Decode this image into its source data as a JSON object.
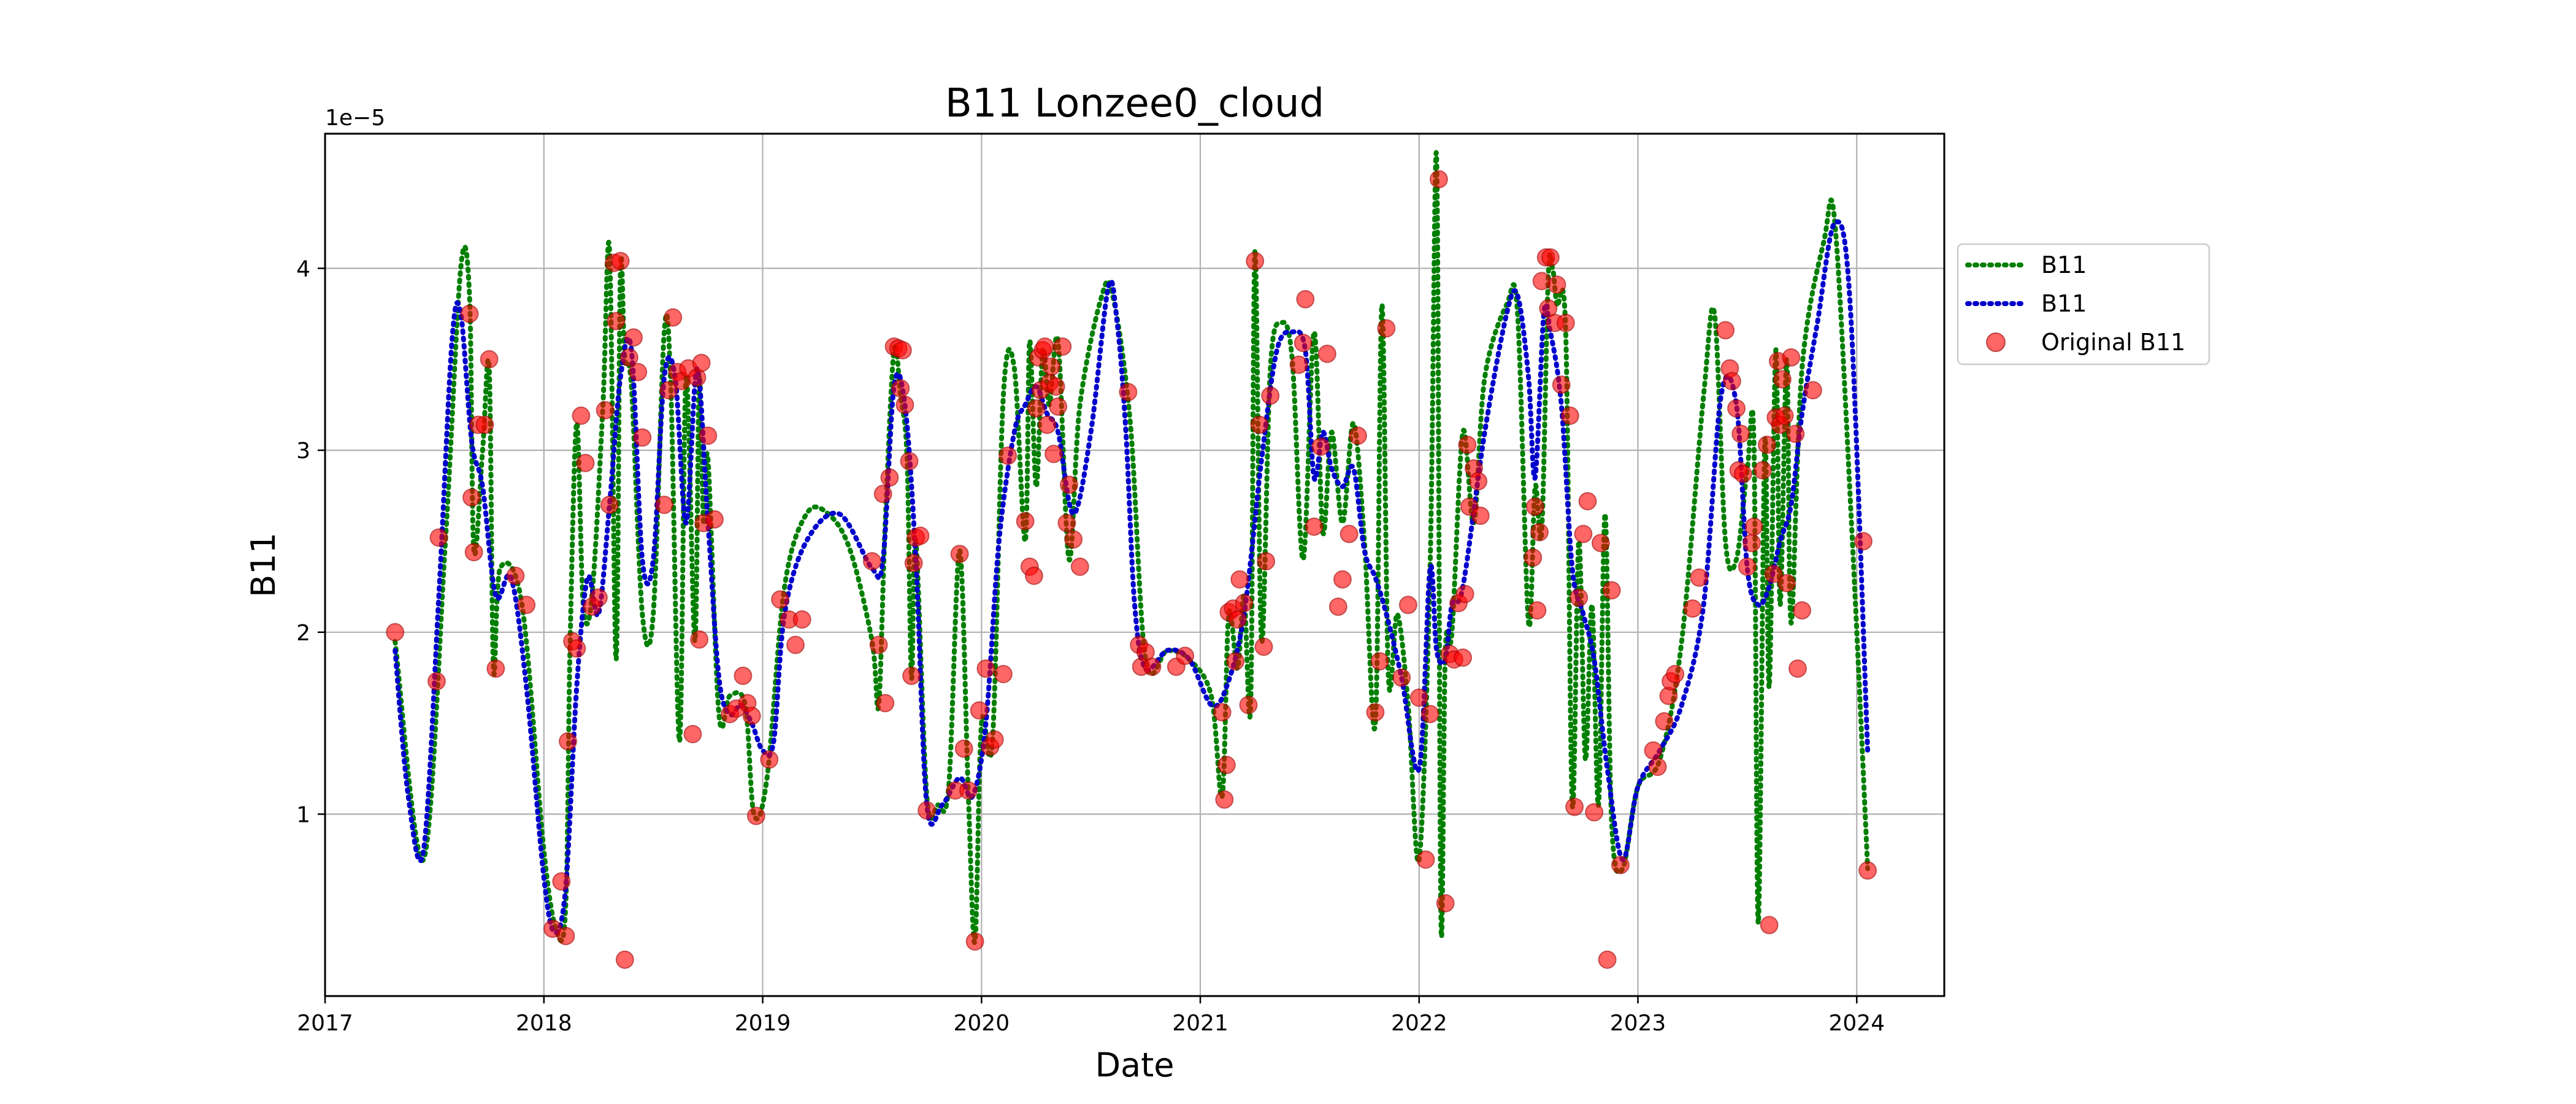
{
  "chart_data": {
    "type": "line",
    "title": "B11 Lonzee0_cloud",
    "xlabel": "Date",
    "ylabel": "B11",
    "offset_label": "1e−5",
    "xlim": [
      2017.0,
      2024.4
    ],
    "ylim": [
      0.0,
      4.74e-05
    ],
    "x_ticks": [
      2017,
      2018,
      2019,
      2020,
      2021,
      2022,
      2023,
      2024
    ],
    "x_tick_labels": [
      "2017",
      "2018",
      "2019",
      "2020",
      "2021",
      "2022",
      "2023",
      "2024"
    ],
    "y_ticks": [
      1e-05,
      2e-05,
      3e-05,
      4e-05
    ],
    "y_tick_labels": [
      "1",
      "2",
      "3",
      "4"
    ],
    "grid": true,
    "legend_position": "right",
    "colors": {
      "green": "#007f00",
      "blue": "#0000cc",
      "points": "#ff0000"
    },
    "legend": [
      {
        "label": "B11",
        "style": "green-dotted"
      },
      {
        "label": "B11",
        "style": "blue-dotted"
      },
      {
        "label": "Original B11",
        "style": "red-marker"
      }
    ],
    "series": [
      {
        "style": "green-dotted",
        "x": [
          2017.32,
          2017.45,
          2017.55,
          2017.62,
          2017.66,
          2017.68,
          2017.72,
          2017.75,
          2017.77,
          2017.8,
          2017.9,
          2018.0,
          2018.06,
          2018.1,
          2018.12,
          2018.15,
          2018.18,
          2018.22,
          2018.27,
          2018.3,
          2018.33,
          2018.35,
          2018.37,
          2018.4,
          2018.45,
          2018.5,
          2018.55,
          2018.58,
          2018.62,
          2018.65,
          2018.69,
          2018.71,
          2018.73,
          2018.75,
          2018.8,
          2018.85,
          2018.92,
          2018.96,
          2019.02,
          2019.1,
          2019.2,
          2019.3,
          2019.4,
          2019.5,
          2019.53,
          2019.56,
          2019.6,
          2019.63,
          2019.66,
          2019.68,
          2019.7,
          2019.75,
          2019.8,
          2019.85,
          2019.9,
          2019.94,
          2019.97,
          2020.0,
          2020.05,
          2020.1,
          2020.15,
          2020.2,
          2020.22,
          2020.25,
          2020.28,
          2020.31,
          2020.35,
          2020.4,
          2020.45,
          2020.55,
          2020.6,
          2020.68,
          2020.75,
          2020.85,
          2020.95,
          2021.05,
          2021.1,
          2021.13,
          2021.17,
          2021.2,
          2021.23,
          2021.25,
          2021.28,
          2021.32,
          2021.37,
          2021.42,
          2021.47,
          2021.52,
          2021.56,
          2021.6,
          2021.65,
          2021.7,
          2021.75,
          2021.8,
          2021.83,
          2021.86,
          2021.9,
          2021.95,
          2022.0,
          2022.05,
          2022.08,
          2022.1,
          2022.12,
          2022.15,
          2022.2,
          2022.25,
          2022.3,
          2022.4,
          2022.45,
          2022.5,
          2022.53,
          2022.56,
          2022.59,
          2022.61,
          2022.63,
          2022.67,
          2022.7,
          2022.73,
          2022.76,
          2022.79,
          2022.82,
          2022.85,
          2022.88,
          2022.93,
          2023.0,
          2023.1,
          2023.2,
          2023.3,
          2023.35,
          2023.4,
          2023.45,
          2023.5,
          2023.53,
          2023.55,
          2023.58,
          2023.6,
          2023.63,
          2023.65,
          2023.68,
          2023.7,
          2023.75,
          2023.85,
          2023.9,
          2023.98,
          2024.05
        ],
        "y": [
          1.95e-05,
          7.5e-06,
          2.5e-05,
          4e-05,
          3.85e-05,
          2.45e-05,
          3e-05,
          3.45e-05,
          1.8e-05,
          2.35e-05,
          2.15e-05,
          8e-06,
          3.5e-06,
          5e-06,
          1.95e-05,
          3.15e-05,
          2.15e-05,
          2.2e-05,
          3.25e-05,
          4.1e-05,
          1.85e-05,
          4e-05,
          3.5e-05,
          3.35e-05,
          2.1e-05,
          2.1e-05,
          3.65e-05,
          3.35e-05,
          1.4e-05,
          3.4e-05,
          1.95e-05,
          3.4e-05,
          2.6e-05,
          2.95e-05,
          1.55e-05,
          1.65e-05,
          1.6e-05,
          1e-05,
          1.2e-05,
          2.25e-05,
          2.65e-05,
          2.65e-05,
          2.45e-05,
          1.95e-05,
          1.6e-05,
          2.6e-05,
          3.55e-05,
          3.3e-05,
          2.95e-05,
          1.75e-05,
          2.5e-05,
          1.1e-05,
          1.05e-05,
          1.15e-05,
          2.45e-05,
          1.1e-05,
          3e-06,
          1.5e-05,
          1.4e-05,
          3.3e-05,
          3.45e-05,
          2.5e-05,
          3.6e-05,
          2.8e-05,
          3.55e-05,
          3.25e-05,
          3.6e-05,
          2.4e-05,
          3.25e-05,
          3.85e-05,
          3.85e-05,
          3.15e-05,
          1.85e-05,
          1.9e-05,
          1.85e-05,
          1.65e-05,
          1.1e-05,
          2.1e-05,
          1.8e-05,
          2.2e-05,
          1.6e-05,
          4.1e-05,
          1.95e-05,
          3.45e-05,
          3.7e-05,
          3.5e-05,
          2.4e-05,
          3.65e-05,
          2.55e-05,
          3.1e-05,
          2.6e-05,
          3.15e-05,
          2.5e-05,
          1.5e-05,
          3.8e-05,
          1.75e-05,
          2.1e-05,
          1.6e-05,
          7.5e-06,
          2.35e-05,
          4.6e-05,
          4e-06,
          1.9e-05,
          2e-05,
          3.1e-05,
          2.6e-05,
          3.4e-05,
          3.8e-05,
          3.75e-05,
          2.05e-05,
          2.8e-05,
          2.55e-05,
          3.95e-05,
          4e-05,
          3.8e-05,
          3.65e-05,
          1.05e-05,
          2.5e-05,
          1.3e-05,
          2.15e-05,
          1.05e-05,
          2.65e-05,
          9.5e-06,
          7e-06,
          1.15e-05,
          1.3e-05,
          1.95e-05,
          3.3e-05,
          3.75e-05,
          2.5e-05,
          2.4e-05,
          2.9e-05,
          3.05e-05,
          4e-06,
          3.05e-05,
          1.7e-05,
          3.55e-05,
          2.15e-05,
          3.5e-05,
          2.05e-05,
          3.45e-05,
          4.15e-05,
          4.25e-05,
          2.5e-05,
          7e-06
        ]
      },
      {
        "style": "blue-dotted",
        "x": [
          2017.32,
          2017.38,
          2017.45,
          2017.52,
          2017.58,
          2017.62,
          2017.67,
          2017.72,
          2017.78,
          2017.85,
          2017.92,
          2018.0,
          2018.05,
          2018.1,
          2018.15,
          2018.2,
          2018.25,
          2018.3,
          2018.35,
          2018.4,
          2018.45,
          2018.5,
          2018.55,
          2018.6,
          2018.65,
          2018.7,
          2018.75,
          2018.8,
          2018.85,
          2018.9,
          2018.95,
          2019.0,
          2019.05,
          2019.1,
          2019.2,
          2019.35,
          2019.5,
          2019.55,
          2019.6,
          2019.65,
          2019.7,
          2019.75,
          2019.82,
          2019.9,
          2019.96,
          2020.02,
          2020.08,
          2020.15,
          2020.2,
          2020.25,
          2020.3,
          2020.35,
          2020.42,
          2020.5,
          2020.58,
          2020.62,
          2020.66,
          2020.7,
          2020.75,
          2020.85,
          2020.95,
          2021.05,
          2021.12,
          2021.2,
          2021.28,
          2021.35,
          2021.42,
          2021.48,
          2021.52,
          2021.56,
          2021.6,
          2021.65,
          2021.7,
          2021.75,
          2021.8,
          2021.85,
          2021.92,
          2022.0,
          2022.05,
          2022.08,
          2022.12,
          2022.15,
          2022.2,
          2022.3,
          2022.4,
          2022.45,
          2022.5,
          2022.53,
          2022.57,
          2022.6,
          2022.65,
          2022.7,
          2022.75,
          2022.8,
          2022.86,
          2022.93,
          2023.0,
          2023.1,
          2023.2,
          2023.3,
          2023.38,
          2023.45,
          2023.5,
          2023.55,
          2023.6,
          2023.65,
          2023.7,
          2023.75,
          2023.82,
          2023.9,
          2023.97,
          2024.05
        ],
        "y": [
          1.9e-05,
          1.1e-05,
          8e-06,
          2.2e-05,
          3.6e-05,
          3.75e-05,
          3.05e-05,
          2.8e-05,
          2.2e-05,
          2.3e-05,
          1.7e-05,
          6.5e-06,
          3.5e-06,
          6e-06,
          1.7e-05,
          2.3e-05,
          2.1e-05,
          2.7e-05,
          3.4e-05,
          3.55e-05,
          2.4e-05,
          2.4e-05,
          3.4e-05,
          3.4e-05,
          2.6e-05,
          3.45e-05,
          2.6e-05,
          1.75e-05,
          1.55e-05,
          1.6e-05,
          1.5e-05,
          1.35e-05,
          1.4e-05,
          2.1e-05,
          2.5e-05,
          2.65e-05,
          2.35e-05,
          2.4e-05,
          3.35e-05,
          3.25e-05,
          2.4e-05,
          1.05e-05,
          1.05e-05,
          1.2e-05,
          1.1e-05,
          1.5e-05,
          2.5e-05,
          3.1e-05,
          3.25e-05,
          3.35e-05,
          3.2e-05,
          3.1e-05,
          2.65e-05,
          3.1e-05,
          3.9e-05,
          3.7e-05,
          3.1e-05,
          2.15e-05,
          1.8e-05,
          1.9e-05,
          1.85e-05,
          1.6e-05,
          1.7e-05,
          2.1e-05,
          2.95e-05,
          3.55e-05,
          3.65e-05,
          3.55e-05,
          2.85e-05,
          3.1e-05,
          2.9e-05,
          2.8e-05,
          2.9e-05,
          2.45e-05,
          2.3e-05,
          2.1e-05,
          1.75e-05,
          1.25e-05,
          2.35e-05,
          1.9e-05,
          1.85e-05,
          2.15e-05,
          2.25e-05,
          3.1e-05,
          3.75e-05,
          3.85e-05,
          3.4e-05,
          2.85e-05,
          3.75e-05,
          3.65e-05,
          3.25e-05,
          2.35e-05,
          2.1e-05,
          1.85e-05,
          1.25e-05,
          7.5e-06,
          1.15e-05,
          1.35e-05,
          1.6e-05,
          2.15e-05,
          3.3e-05,
          3.25e-05,
          2.35e-05,
          2.15e-05,
          2.25e-05,
          2.5e-05,
          2.7e-05,
          3.2e-05,
          3.7e-05,
          4.25e-05,
          3.8e-05,
          1.35e-05
        ]
      },
      {
        "style": "red-marker",
        "x": [
          2017.32,
          2017.51,
          2017.52,
          2017.66,
          2017.67,
          2017.68,
          2017.7,
          2017.73,
          2017.75,
          2017.78,
          2017.87,
          2017.92,
          2018.04,
          2018.08,
          2018.1,
          2018.11,
          2018.13,
          2018.15,
          2018.17,
          2018.19,
          2018.22,
          2018.25,
          2018.28,
          2018.3,
          2018.32,
          2018.33,
          2018.35,
          2018.37,
          2018.39,
          2018.41,
          2018.43,
          2018.45,
          2018.55,
          2018.57,
          2018.59,
          2018.61,
          2018.63,
          2018.66,
          2018.68,
          2018.7,
          2018.71,
          2018.72,
          2018.73,
          2018.75,
          2018.78,
          2018.85,
          2018.88,
          2018.91,
          2018.93,
          2018.95,
          2018.97,
          2019.03,
          2019.08,
          2019.12,
          2019.15,
          2019.18,
          2019.5,
          2019.53,
          2019.55,
          2019.56,
          2019.58,
          2019.6,
          2019.62,
          2019.63,
          2019.64,
          2019.65,
          2019.67,
          2019.68,
          2019.69,
          2019.7,
          2019.72,
          2019.75,
          2019.88,
          2019.9,
          2019.92,
          2019.94,
          2019.97,
          2019.99,
          2020.02,
          2020.04,
          2020.06,
          2020.1,
          2020.12,
          2020.2,
          2020.22,
          2020.24,
          2020.25,
          2020.26,
          2020.27,
          2020.28,
          2020.29,
          2020.3,
          2020.31,
          2020.32,
          2020.33,
          2020.34,
          2020.35,
          2020.37,
          2020.39,
          2020.4,
          2020.42,
          2020.45,
          2020.67,
          2020.72,
          2020.73,
          2020.75,
          2020.78,
          2020.89,
          2020.93,
          2021.1,
          2021.11,
          2021.12,
          2021.13,
          2021.15,
          2021.16,
          2021.17,
          2021.18,
          2021.2,
          2021.22,
          2021.25,
          2021.27,
          2021.29,
          2021.3,
          2021.32,
          2021.45,
          2021.47,
          2021.48,
          2021.52,
          2021.55,
          2021.58,
          2021.63,
          2021.65,
          2021.68,
          2021.72,
          2021.8,
          2021.82,
          2021.85,
          2021.92,
          2021.95,
          2022.0,
          2022.03,
          2022.05,
          2022.09,
          2022.12,
          2022.14,
          2022.16,
          2022.18,
          2022.2,
          2022.21,
          2022.22,
          2022.23,
          2022.25,
          2022.27,
          2022.28,
          2022.52,
          2022.53,
          2022.54,
          2022.55,
          2022.56,
          2022.58,
          2022.59,
          2022.6,
          2022.62,
          2022.63,
          2022.65,
          2022.67,
          2022.69,
          2022.71,
          2022.73,
          2022.75,
          2022.77,
          2022.8,
          2022.83,
          2022.86,
          2022.88,
          2022.92,
          2023.07,
          2023.09,
          2023.12,
          2023.14,
          2023.15,
          2023.17,
          2023.25,
          2023.28,
          2023.4,
          2023.42,
          2023.43,
          2023.45,
          2023.46,
          2023.47,
          2023.48,
          2023.5,
          2023.52,
          2023.53,
          2023.57,
          2023.59,
          2023.6,
          2023.62,
          2023.63,
          2023.64,
          2023.65,
          2023.66,
          2023.67,
          2023.68,
          2023.7,
          2023.72,
          2023.73,
          2023.75,
          2023.8,
          2024.03,
          2024.05
        ],
        "y": [
          2e-05,
          1.73e-05,
          2.52e-05,
          3.75e-05,
          2.74e-05,
          2.44e-05,
          3.14e-05,
          3.14e-05,
          3.5e-05,
          1.8e-05,
          2.31e-05,
          2.15e-05,
          3.7e-06,
          6.3e-06,
          3.3e-06,
          1.4e-05,
          1.95e-05,
          1.91e-05,
          3.19e-05,
          2.93e-05,
          2.14e-05,
          2.19e-05,
          3.22e-05,
          2.7e-05,
          4.03e-05,
          3.71e-05,
          4.04e-05,
          2e-06,
          3.51e-05,
          3.62e-05,
          3.43e-05,
          3.07e-05,
          2.7e-05,
          3.33e-05,
          3.73e-05,
          3.43e-05,
          3.38e-05,
          3.45e-05,
          1.44e-05,
          3.4e-05,
          1.96e-05,
          3.48e-05,
          2.6e-05,
          3.08e-05,
          2.62e-05,
          1.55e-05,
          1.58e-05,
          1.76e-05,
          1.61e-05,
          1.54e-05,
          9.9e-06,
          1.3e-05,
          2.18e-05,
          2.07e-05,
          1.93e-05,
          2.07e-05,
          2.39e-05,
          1.93e-05,
          2.76e-05,
          1.61e-05,
          2.85e-05,
          3.57e-05,
          3.56e-05,
          3.34e-05,
          3.55e-05,
          3.25e-05,
          2.94e-05,
          1.76e-05,
          2.38e-05,
          2.52e-05,
          2.53e-05,
          1.02e-05,
          1.13e-05,
          2.43e-05,
          1.36e-05,
          1.13e-05,
          3e-06,
          1.57e-05,
          1.8e-05,
          1.37e-05,
          1.41e-05,
          1.77e-05,
          2.97e-05,
          2.61e-05,
          2.36e-05,
          2.31e-05,
          3.23e-05,
          3.51e-05,
          3.33e-05,
          3.55e-05,
          3.57e-05,
          3.14e-05,
          3.37e-05,
          3.46e-05,
          2.98e-05,
          3.35e-05,
          3.24e-05,
          3.57e-05,
          2.6e-05,
          2.81e-05,
          2.51e-05,
          2.36e-05,
          3.32e-05,
          1.93e-05,
          1.81e-05,
          1.89e-05,
          1.81e-05,
          1.81e-05,
          1.87e-05,
          1.56e-05,
          1.08e-05,
          1.27e-05,
          2.11e-05,
          2.13e-05,
          1.84e-05,
          2.07e-05,
          2.29e-05,
          2.16e-05,
          1.6e-05,
          4.04e-05,
          3.14e-05,
          1.92e-05,
          2.39e-05,
          3.3e-05,
          3.47e-05,
          3.59e-05,
          3.83e-05,
          2.58e-05,
          3.02e-05,
          3.53e-05,
          2.14e-05,
          2.29e-05,
          2.54e-05,
          3.08e-05,
          1.56e-05,
          1.84e-05,
          3.67e-05,
          1.75e-05,
          2.15e-05,
          1.64e-05,
          7.5e-06,
          1.55e-05,
          4.49e-05,
          5.1e-06,
          1.88e-05,
          1.85e-05,
          2.16e-05,
          1.86e-05,
          2.21e-05,
          3.03e-05,
          2.69e-05,
          2.9e-05,
          2.83e-05,
          2.64e-05,
          2.41e-05,
          2.69e-05,
          2.12e-05,
          2.55e-05,
          3.93e-05,
          4.06e-05,
          3.78e-05,
          4.06e-05,
          3.7e-05,
          3.91e-05,
          3.36e-05,
          3.7e-05,
          3.19e-05,
          1.04e-05,
          2.19e-05,
          2.54e-05,
          2.72e-05,
          1.01e-05,
          2.49e-05,
          2e-06,
          2.23e-05,
          7.2e-06,
          1.35e-05,
          1.26e-05,
          1.51e-05,
          1.65e-05,
          1.73e-05,
          1.77e-05,
          2.13e-05,
          2.3e-05,
          3.66e-05,
          3.45e-05,
          3.38e-05,
          3.23e-05,
          2.89e-05,
          3.09e-05,
          2.87e-05,
          2.36e-05,
          2.49e-05,
          2.58e-05,
          2.89e-05,
          3.03e-05,
          3.9e-06,
          2.32e-05,
          3.18e-05,
          3.49e-05,
          3.14e-05,
          3.39e-05,
          3.19e-05,
          2.27e-05,
          3.51e-05,
          3.09e-05,
          1.8e-05,
          2.12e-05,
          3.33e-05,
          2.5e-05,
          6.9e-06
        ]
      }
    ]
  }
}
